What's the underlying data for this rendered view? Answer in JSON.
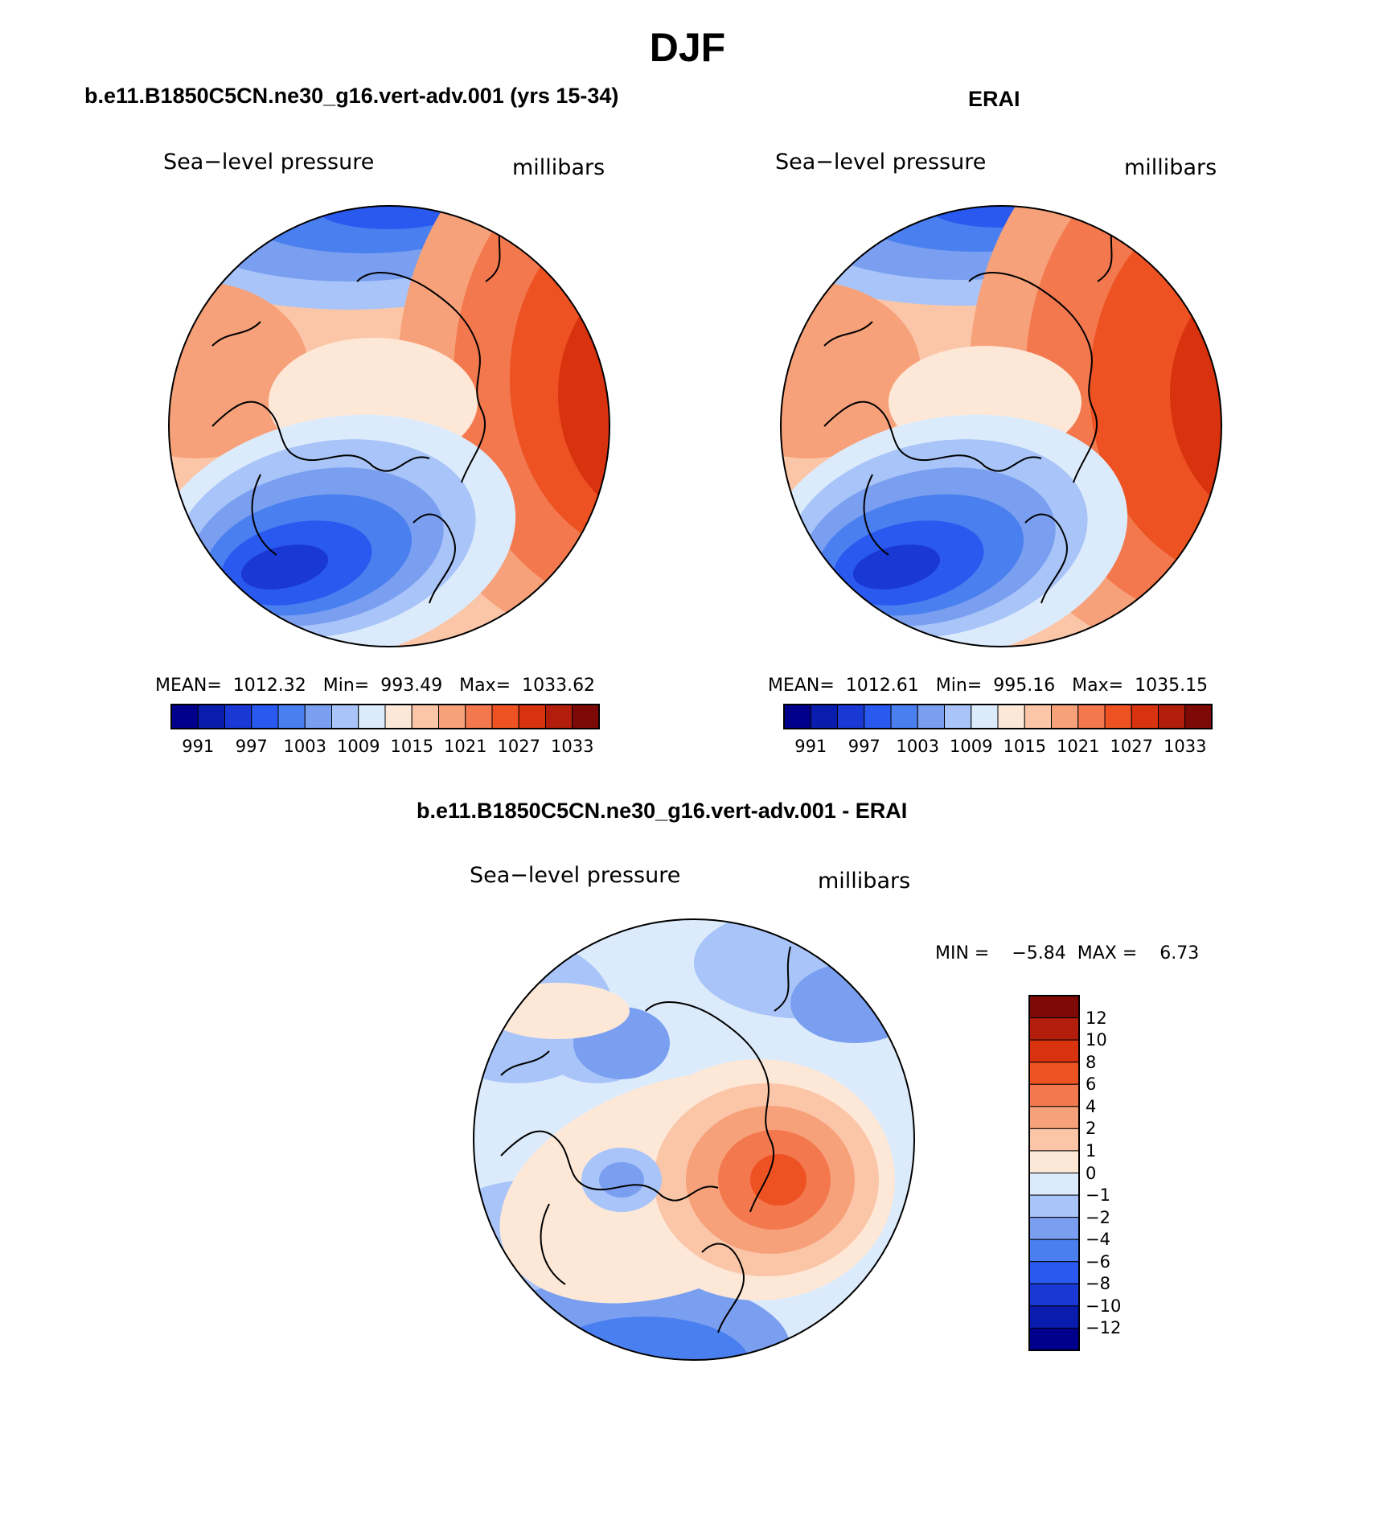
{
  "main_title": "DJF",
  "panels": [
    {
      "id": "model",
      "title": "b.e11.B1850C5CN.ne30_g16.vert-adv.001 (yrs 15-34)",
      "variable": "Sea−level pressure",
      "units": "millibars",
      "stats": "MEAN=  1012.32   Min=  993.49   Max=  1033.62"
    },
    {
      "id": "erai",
      "title": "ERAI",
      "variable": "Sea−level pressure",
      "units": "millibars",
      "stats": "MEAN=  1012.61   Min=  995.16   Max=  1035.15"
    },
    {
      "id": "diff",
      "title": "b.e11.B1850C5CN.ne30_g16.vert-adv.001 - ERAI",
      "variable": "Sea−level pressure",
      "units": "millibars",
      "stats": "MIN =    −5.84  MAX =    6.73"
    }
  ],
  "colorbar_abs": {
    "colors": [
      "#00008c",
      "#0a1cae",
      "#1a39d4",
      "#2a59f0",
      "#4a7ff0",
      "#7a9ff0",
      "#a8c4f8",
      "#dcebfc",
      "#fde8d8",
      "#fbc6a8",
      "#f7a17a",
      "#f3784e",
      "#ee5222",
      "#d8320f",
      "#b21d0c",
      "#7e0a08"
    ],
    "tick_labels": [
      "991",
      "997",
      "1003",
      "1009",
      "1015",
      "1021",
      "1027",
      "1033"
    ]
  },
  "colorbar_diff": {
    "colors": [
      "#7e0a08",
      "#b21d0c",
      "#d8320f",
      "#ee5222",
      "#f3784e",
      "#f7a17a",
      "#fbc6a8",
      "#fde8d8",
      "#dcebfc",
      "#a8c4f8",
      "#7a9ff0",
      "#4a7ff0",
      "#2a59f0",
      "#1a39d4",
      "#0a1cae",
      "#00008c"
    ],
    "tick_labels": [
      "12",
      "10",
      "8",
      "6",
      "4",
      "2",
      "1",
      "0",
      "−1",
      "−2",
      "−4",
      "−6",
      "−8",
      "−10",
      "−12"
    ]
  },
  "chart_data": [
    {
      "type": "heatmap",
      "projection": "polar-stereographic (north pole)",
      "title": "b.e11.B1850C5CN.ne30_g16.vert-adv.001 (yrs 15-34)",
      "field": "Sea-level pressure",
      "units": "millibars",
      "mean": 1012.32,
      "min": 993.49,
      "max": 1033.62,
      "contour_levels": [
        991,
        994,
        997,
        1000,
        1003,
        1006,
        1009,
        1012,
        1015,
        1018,
        1021,
        1024,
        1027,
        1030,
        1033
      ]
    },
    {
      "type": "heatmap",
      "projection": "polar-stereographic (north pole)",
      "title": "ERAI",
      "field": "Sea-level pressure",
      "units": "millibars",
      "mean": 1012.61,
      "min": 995.16,
      "max": 1035.15,
      "contour_levels": [
        991,
        994,
        997,
        1000,
        1003,
        1006,
        1009,
        1012,
        1015,
        1018,
        1021,
        1024,
        1027,
        1030,
        1033
      ]
    },
    {
      "type": "heatmap",
      "projection": "polar-stereographic (north pole)",
      "title": "b.e11.B1850C5CN.ne30_g16.vert-adv.001 - ERAI",
      "field": "Sea-level pressure",
      "units": "millibars",
      "min": -5.84,
      "max": 6.73,
      "contour_levels": [
        -12,
        -10,
        -8,
        -6,
        -4,
        -2,
        -1,
        0,
        1,
        2,
        4,
        6,
        8,
        10,
        12
      ]
    }
  ]
}
